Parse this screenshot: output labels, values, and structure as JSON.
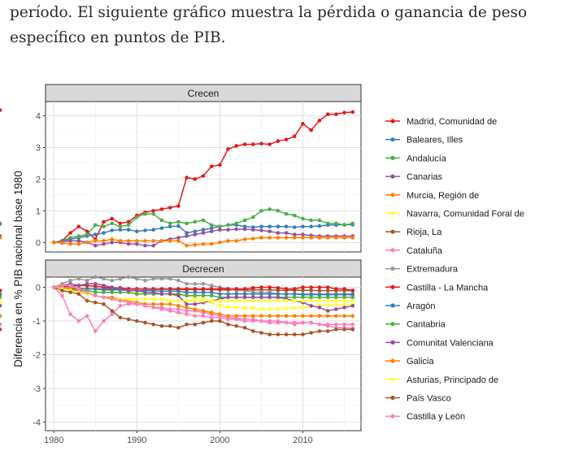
{
  "intro": {
    "line1": "período. El siguiente gráfico muestra la pérdida o ganancia de peso",
    "line2": "específico en puntos de PIB."
  },
  "chart_data": {
    "type": "line",
    "ylabel": "Diferencia en % PIB nacional base 1980",
    "xlabel": "",
    "x_ticks": [
      "1980",
      "1990",
      "2000",
      "2010"
    ],
    "xlim": [
      1979,
      2017
    ],
    "grid": true,
    "legend_position": "right",
    "panels": [
      {
        "title": "Crecen",
        "ylim": [
          -0.3,
          4.45
        ],
        "y_ticks": [
          "0",
          "1",
          "2",
          "3",
          "4"
        ],
        "y_tick_values": [
          0,
          1,
          2,
          3,
          4
        ],
        "series": [
          {
            "name": "Madrid, Comunidad de",
            "color": "#e41a1c",
            "values": [
              0,
              0.05,
              0.3,
              0.5,
              0.35,
              0.1,
              0.65,
              0.75,
              0.6,
              0.65,
              0.85,
              0.95,
              1.0,
              1.05,
              1.1,
              1.15,
              2.05,
              2.0,
              2.1,
              2.4,
              2.45,
              2.95,
              3.05,
              3.1,
              3.1,
              3.12,
              3.1,
              3.2,
              3.25,
              3.35,
              3.75,
              3.55,
              3.85,
              4.05,
              4.05,
              4.1,
              4.12,
              4.18
            ]
          },
          {
            "name": "Baleares, Illes",
            "color": "#377eb8",
            "values": [
              0,
              0.05,
              0.1,
              0.15,
              0.2,
              0.25,
              0.3,
              0.38,
              0.4,
              0.4,
              0.35,
              0.38,
              0.4,
              0.45,
              0.5,
              0.52,
              0.3,
              0.35,
              0.4,
              0.45,
              0.5,
              0.55,
              0.55,
              0.5,
              0.48,
              0.5,
              0.5,
              0.5,
              0.5,
              0.48,
              0.5,
              0.5,
              0.52,
              0.55,
              0.55,
              0.56,
              0.56,
              0.58
            ]
          },
          {
            "name": "Andalucía",
            "color": "#4daf4a",
            "values": [
              0,
              0.05,
              0.15,
              0.2,
              0.25,
              0.55,
              0.5,
              0.6,
              0.5,
              0.55,
              0.8,
              0.9,
              0.9,
              0.7,
              0.6,
              0.65,
              0.6,
              0.65,
              0.7,
              0.55,
              0.5,
              0.55,
              0.6,
              0.7,
              0.8,
              1.0,
              1.05,
              1.0,
              0.9,
              0.85,
              0.75,
              0.7,
              0.7,
              0.6,
              0.6,
              0.55,
              0.6,
              0.6
            ]
          },
          {
            "name": "Canarias",
            "color": "#984ea3",
            "values": [
              0,
              0.02,
              0.05,
              0.05,
              0.0,
              -0.1,
              -0.05,
              0.0,
              0.0,
              -0.05,
              -0.05,
              -0.1,
              -0.1,
              0.05,
              0.1,
              0.15,
              0.2,
              0.25,
              0.3,
              0.35,
              0.4,
              0.4,
              0.42,
              0.42,
              0.4,
              0.38,
              0.35,
              0.3,
              0.3,
              0.25,
              0.25,
              0.22,
              0.2,
              0.2,
              0.2,
              0.2,
              0.2,
              0.2
            ]
          },
          {
            "name": "Murcia, Región de",
            "color": "#ff7f00",
            "values": [
              0,
              -0.02,
              -0.05,
              -0.05,
              0.0,
              0.05,
              0.05,
              0.1,
              0.05,
              0.05,
              0.05,
              0.05,
              0.05,
              0.05,
              0.05,
              0.05,
              -0.1,
              -0.08,
              -0.05,
              -0.05,
              0.0,
              0.05,
              0.05,
              0.1,
              0.12,
              0.15,
              0.15,
              0.15,
              0.15,
              0.15,
              0.15,
              0.15,
              0.15,
              0.15,
              0.15,
              0.15,
              0.15,
              0.15
            ]
          }
        ]
      },
      {
        "title": "Decrecen",
        "ylim": [
          -4.25,
          0.3
        ],
        "y_ticks": [
          "0",
          "-1",
          "-2",
          "-3",
          "-4"
        ],
        "y_tick_values": [
          0,
          -1,
          -2,
          -3,
          -4
        ],
        "series": [
          {
            "name": "Navarra, Comunidad Foral de",
            "color": "#ffff33",
            "values": [
              0,
              0,
              -0.05,
              -0.08,
              -0.1,
              -0.12,
              -0.15,
              -0.15,
              -0.15,
              -0.15,
              -0.15,
              -0.15,
              -0.15,
              -0.2,
              -0.22,
              -0.25,
              -0.25,
              -0.3,
              -0.35,
              -0.45,
              -0.55,
              -0.58,
              -0.6,
              -0.62,
              -0.62,
              -0.65,
              -0.65,
              -0.65,
              -0.62,
              -0.62,
              -0.6,
              -0.58,
              -0.55,
              -0.55,
              -0.52,
              -0.52,
              -0.52,
              -0.52
            ]
          },
          {
            "name": "Rioja, La",
            "color": "#a65628",
            "values": [
              0,
              -0.02,
              -0.03,
              -0.03,
              -0.05,
              -0.05,
              -0.05,
              -0.05,
              -0.05,
              -0.05,
              -0.05,
              -0.06,
              -0.06,
              -0.06,
              -0.06,
              -0.07,
              -0.07,
              -0.07,
              -0.07,
              -0.07,
              -0.08,
              -0.08,
              -0.08,
              -0.08,
              -0.08,
              -0.08,
              -0.08,
              -0.09,
              -0.09,
              -0.09,
              -0.09,
              -0.09,
              -0.1,
              -0.1,
              -0.1,
              -0.1,
              -0.1,
              -0.1
            ]
          },
          {
            "name": "Cataluña",
            "color": "#f781bf",
            "values": [
              0,
              -0.25,
              -0.8,
              -1.0,
              -0.85,
              -1.3,
              -1.0,
              -0.8,
              -0.55,
              -0.5,
              -0.5,
              -0.55,
              -0.6,
              -0.6,
              -0.65,
              -0.65,
              -0.7,
              -0.7,
              -0.75,
              -0.8,
              -0.85,
              -0.9,
              -0.92,
              -0.95,
              -0.95,
              -1.0,
              -1.0,
              -1.0,
              -1.05,
              -1.1,
              -1.05,
              -1.05,
              -1.1,
              -1.15,
              -1.2,
              -1.2,
              -1.22,
              -1.25
            ]
          },
          {
            "name": "Extremadura",
            "color": "#999999",
            "values": [
              0,
              0.1,
              0.2,
              0.25,
              0.2,
              0.3,
              0.25,
              0.2,
              0.25,
              0.3,
              0.25,
              0.2,
              0.25,
              0.25,
              0.25,
              0.2,
              0.1,
              0.1,
              0.1,
              0.05,
              0.0,
              -0.05,
              -0.1,
              -0.1,
              -0.15,
              -0.15,
              -0.15,
              -0.2,
              -0.2,
              -0.2,
              -0.2,
              -0.2,
              -0.2,
              -0.2,
              -0.2,
              -0.2,
              -0.2,
              -0.2
            ]
          },
          {
            "name": "Castilla - La Mancha",
            "color": "#e41a1c",
            "values": [
              0,
              0.02,
              0.03,
              0.05,
              0.05,
              0.03,
              0.0,
              -0.02,
              -0.02,
              -0.05,
              -0.05,
              -0.05,
              -0.05,
              -0.05,
              -0.05,
              -0.05,
              -0.05,
              -0.05,
              -0.05,
              -0.05,
              -0.05,
              -0.05,
              -0.05,
              -0.05,
              -0.02,
              0.0,
              0.0,
              -0.02,
              -0.05,
              -0.05,
              0.0,
              0.0,
              0.0,
              0.0,
              -0.05,
              -0.05,
              -0.1,
              -0.1
            ]
          },
          {
            "name": "Aragón",
            "color": "#377eb8",
            "values": [
              0,
              -0.02,
              -0.03,
              -0.05,
              -0.05,
              -0.05,
              -0.08,
              -0.08,
              -0.08,
              -0.1,
              -0.1,
              -0.1,
              -0.1,
              -0.12,
              -0.12,
              -0.12,
              -0.15,
              -0.15,
              -0.15,
              -0.15,
              -0.2,
              -0.2,
              -0.2,
              -0.2,
              -0.2,
              -0.2,
              -0.2,
              -0.2,
              -0.2,
              -0.2,
              -0.22,
              -0.22,
              -0.22,
              -0.22,
              -0.22,
              -0.22,
              -0.22,
              -0.22
            ]
          },
          {
            "name": "Cantabria",
            "color": "#4daf4a",
            "values": [
              0,
              -0.05,
              -0.1,
              -0.1,
              -0.1,
              -0.15,
              -0.15,
              -0.15,
              -0.15,
              -0.15,
              -0.2,
              -0.2,
              -0.2,
              -0.2,
              -0.2,
              -0.2,
              -0.25,
              -0.25,
              -0.25,
              -0.25,
              -0.3,
              -0.3,
              -0.3,
              -0.3,
              -0.3,
              -0.3,
              -0.3,
              -0.3,
              -0.3,
              -0.3,
              -0.3,
              -0.3,
              -0.3,
              -0.3,
              -0.3,
              -0.3,
              -0.3,
              -0.3
            ]
          },
          {
            "name": "Comunitat Valenciana",
            "color": "#984ea3",
            "values": [
              0,
              0.05,
              0.1,
              0.05,
              0.1,
              0.1,
              0.05,
              0.0,
              -0.05,
              -0.1,
              -0.1,
              -0.15,
              -0.15,
              -0.2,
              -0.2,
              -0.25,
              -0.5,
              -0.5,
              -0.45,
              -0.4,
              -0.35,
              -0.3,
              -0.3,
              -0.3,
              -0.3,
              -0.3,
              -0.3,
              -0.3,
              -0.35,
              -0.4,
              -0.45,
              -0.55,
              -0.6,
              -0.7,
              -0.65,
              -0.6,
              -0.55,
              -0.55
            ]
          },
          {
            "name": "Galicia",
            "color": "#ff7f00",
            "values": [
              0,
              0.0,
              -0.05,
              -0.1,
              -0.2,
              -0.25,
              -0.3,
              -0.3,
              -0.35,
              -0.4,
              -0.45,
              -0.5,
              -0.5,
              -0.5,
              -0.5,
              -0.55,
              -0.6,
              -0.65,
              -0.7,
              -0.75,
              -0.8,
              -0.85,
              -0.85,
              -0.85,
              -0.85,
              -0.85,
              -0.85,
              -0.85,
              -0.85,
              -0.85,
              -0.85,
              -0.85,
              -0.85,
              -0.85,
              -0.85,
              -0.85,
              -0.85,
              -0.85
            ]
          },
          {
            "name": "Asturias, Principado de",
            "color": "#ffff33",
            "values": [
              0,
              -0.05,
              -0.1,
              -0.15,
              -0.2,
              -0.25,
              -0.3,
              -0.35,
              -0.35,
              -0.35,
              -0.35,
              -0.35,
              -0.35,
              -0.35,
              -0.4,
              -0.4,
              -0.4,
              -0.4,
              -0.4,
              -0.4,
              -0.4,
              -0.4,
              -0.4,
              -0.4,
              -0.4,
              -0.4,
              -0.4,
              -0.4,
              -0.4,
              -0.4,
              -0.4,
              -0.4,
              -0.4,
              -0.4,
              -0.4,
              -0.4,
              -0.4,
              -0.4
            ]
          },
          {
            "name": "País Vasco",
            "color": "#a65628",
            "values": [
              0,
              -0.1,
              -0.15,
              -0.2,
              -0.4,
              -0.45,
              -0.5,
              -0.7,
              -0.9,
              -0.95,
              -1.0,
              -1.05,
              -1.1,
              -1.15,
              -1.15,
              -1.2,
              -1.1,
              -1.1,
              -1.05,
              -1.0,
              -1.0,
              -1.1,
              -1.15,
              -1.2,
              -1.3,
              -1.35,
              -1.4,
              -1.4,
              -1.4,
              -1.4,
              -1.4,
              -1.35,
              -1.3,
              -1.3,
              -1.25,
              -1.25,
              -1.25,
              -1.25
            ]
          },
          {
            "name": "Castilla y León",
            "color": "#f781bf",
            "values": [
              0,
              0.05,
              0.05,
              -0.05,
              -0.15,
              -0.25,
              -0.3,
              -0.35,
              -0.4,
              -0.45,
              -0.5,
              -0.55,
              -0.6,
              -0.65,
              -0.7,
              -0.75,
              -0.8,
              -0.85,
              -0.85,
              -0.9,
              -0.9,
              -0.95,
              -0.95,
              -1.0,
              -1.0,
              -1.0,
              -1.05,
              -1.05,
              -1.05,
              -1.05,
              -1.05,
              -1.05,
              -1.1,
              -1.1,
              -1.1,
              -1.1,
              -1.1,
              -1.1
            ]
          }
        ]
      }
    ]
  }
}
